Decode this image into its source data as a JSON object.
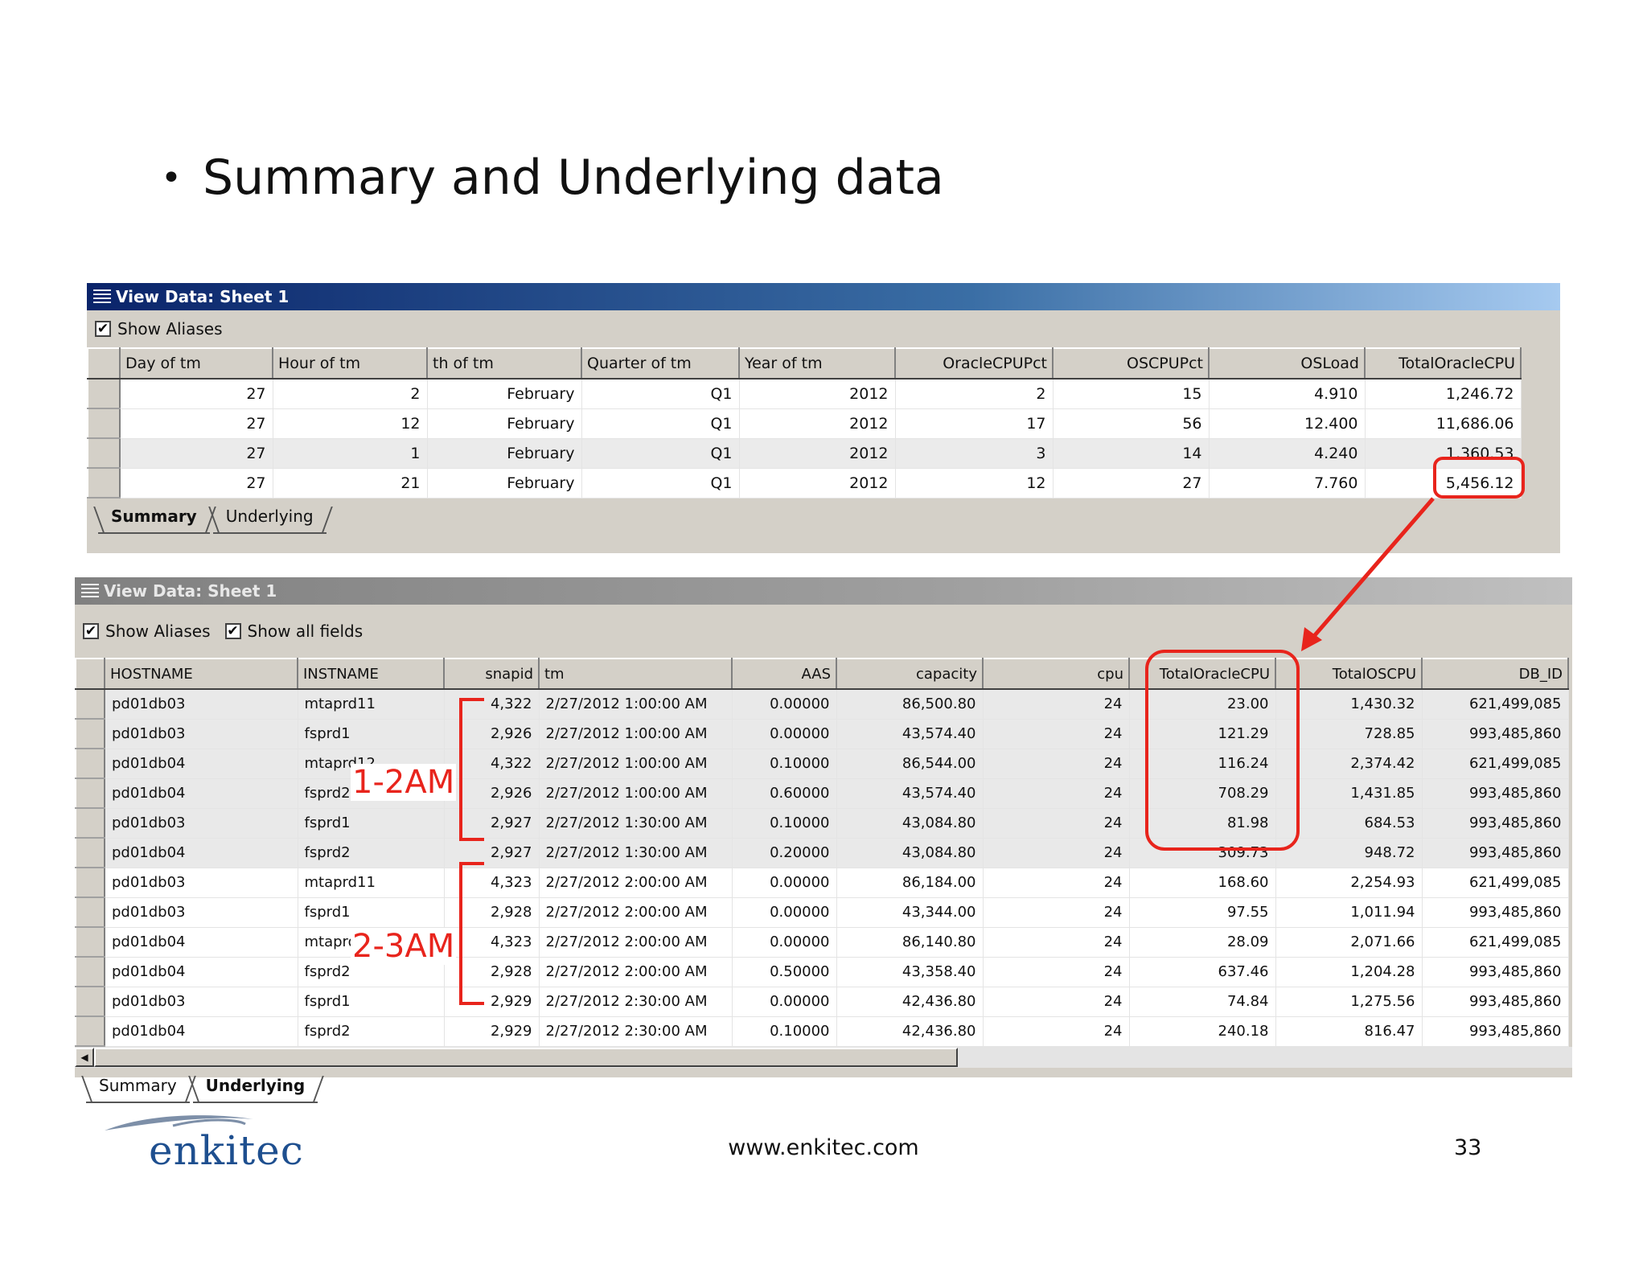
{
  "slide": {
    "title": "Summary and Underlying data",
    "footer_url": "www.enkitec.com",
    "page_number": "33",
    "logo_text": "enkitec"
  },
  "summary_window": {
    "title": "View Data:  Sheet 1",
    "show_aliases_label": "Show Aliases",
    "show_aliases_checked": true,
    "columns": [
      "Day of tm",
      "Hour of tm",
      "th of tm",
      "Quarter of tm",
      "Year of tm",
      "OracleCPUPct",
      "OSCPUPct",
      "OSLoad",
      "TotalOracleCPU"
    ],
    "column_ellipsis": "...",
    "rows": [
      [
        "27",
        "2",
        "February",
        "Q1",
        "2012",
        "2",
        "15",
        "4.910",
        "1,246.72"
      ],
      [
        "27",
        "12",
        "February",
        "Q1",
        "2012",
        "17",
        "56",
        "12.400",
        "11,686.06"
      ],
      [
        "27",
        "1",
        "February",
        "Q1",
        "2012",
        "3",
        "14",
        "4.240",
        "1,360.53"
      ],
      [
        "27",
        "21",
        "February",
        "Q1",
        "2012",
        "12",
        "27",
        "7.760",
        "5,456.12"
      ]
    ],
    "tabs": [
      "Summary",
      "Underlying"
    ],
    "selected_tab": "Summary"
  },
  "underlying_window": {
    "title": "View Data:  Sheet 1",
    "show_aliases_label": "Show Aliases",
    "show_all_fields_label": "Show all fields",
    "columns": [
      "HOSTNAME",
      "INSTNAME",
      "snapid",
      "tm",
      "AAS",
      "capacity",
      "cpu",
      "TotalOracleCPU",
      "TotalOSCPU",
      "DB_ID"
    ],
    "rows": [
      [
        "pd01db03",
        "mtaprd11",
        "4,322",
        "2/27/2012 1:00:00 AM",
        "0.00000",
        "86,500.80",
        "24",
        "23.00",
        "1,430.32",
        "621,499,085"
      ],
      [
        "pd01db03",
        "fsprd1",
        "2,926",
        "2/27/2012 1:00:00 AM",
        "0.00000",
        "43,574.40",
        "24",
        "121.29",
        "728.85",
        "993,485,860"
      ],
      [
        "pd01db04",
        "mtaprd12",
        "4,322",
        "2/27/2012 1:00:00 AM",
        "0.10000",
        "86,544.00",
        "24",
        "116.24",
        "2,374.42",
        "621,499,085"
      ],
      [
        "pd01db04",
        "fsprd2",
        "2,926",
        "2/27/2012 1:00:00 AM",
        "0.60000",
        "43,574.40",
        "24",
        "708.29",
        "1,431.85",
        "993,485,860"
      ],
      [
        "pd01db03",
        "fsprd1",
        "2,927",
        "2/27/2012 1:30:00 AM",
        "0.10000",
        "43,084.80",
        "24",
        "81.98",
        "684.53",
        "993,485,860"
      ],
      [
        "pd01db04",
        "fsprd2",
        "2,927",
        "2/27/2012 1:30:00 AM",
        "0.20000",
        "43,084.80",
        "24",
        "309.73",
        "948.72",
        "993,485,860"
      ],
      [
        "pd01db03",
        "mtaprd11",
        "4,323",
        "2/27/2012 2:00:00 AM",
        "0.00000",
        "86,184.00",
        "24",
        "168.60",
        "2,254.93",
        "621,499,085"
      ],
      [
        "pd01db03",
        "fsprd1",
        "2,928",
        "2/27/2012 2:00:00 AM",
        "0.00000",
        "43,344.00",
        "24",
        "97.55",
        "1,011.94",
        "993,485,860"
      ],
      [
        "pd01db04",
        "mtaprd12",
        "4,323",
        "2/27/2012 2:00:00 AM",
        "0.00000",
        "86,140.80",
        "24",
        "28.09",
        "2,071.66",
        "621,499,085"
      ],
      [
        "pd01db04",
        "fsprd2",
        "2,928",
        "2/27/2012 2:00:00 AM",
        "0.50000",
        "43,358.40",
        "24",
        "637.46",
        "1,204.28",
        "993,485,860"
      ],
      [
        "pd01db03",
        "fsprd1",
        "2,929",
        "2/27/2012 2:30:00 AM",
        "0.00000",
        "42,436.80",
        "24",
        "74.84",
        "1,275.56",
        "993,485,860"
      ],
      [
        "pd01db04",
        "fsprd2",
        "2,929",
        "2/27/2012 2:30:00 AM",
        "0.10000",
        "42,436.80",
        "24",
        "240.18",
        "816.47",
        "993,485,860"
      ]
    ],
    "tabs": [
      "Summary",
      "Underlying"
    ],
    "selected_tab": "Underlying"
  },
  "annotations": {
    "label_1": "1-2AM",
    "label_2": "2-3AM",
    "color": "#e8241c"
  }
}
